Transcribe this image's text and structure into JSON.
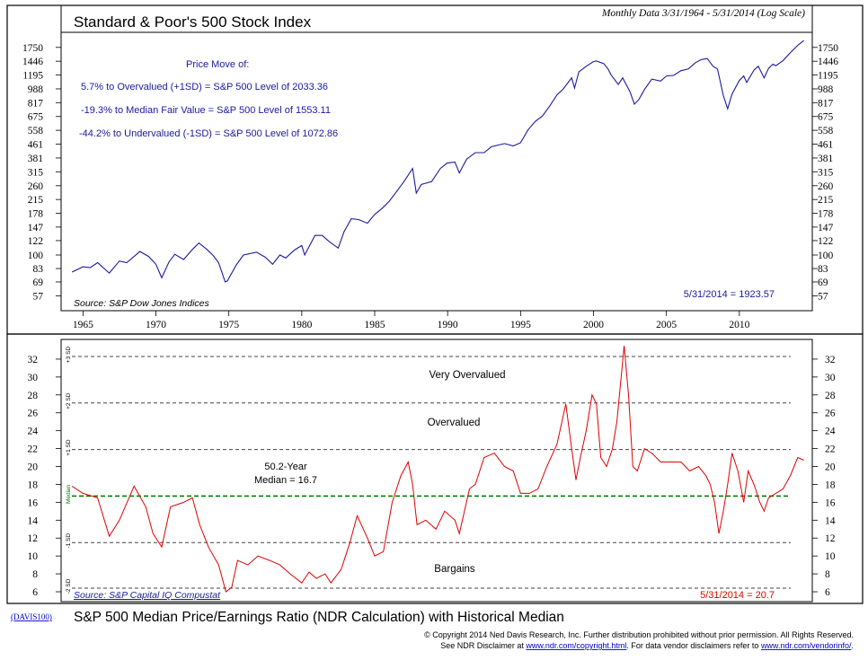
{
  "top_chart": {
    "title": "Standard & Poor's 500 Stock Index",
    "subtitle": "Monthly Data 3/31/1964 - 5/31/2014 (Log Scale)",
    "source": "Source: S&P Dow Jones Indices",
    "latest": "5/31/2014 = 1923.57",
    "price_move": {
      "heading": "Price Move of:",
      "lines": [
        "5.7% to Overvalued (+1SD) = S&P 500 Level of 2033.36",
        "-19.3% to Median Fair Value = S&P 500 Level of 1553.11",
        "-44.2% to Undervalued (-1SD) = S&P 500 Level of 1072.86"
      ]
    }
  },
  "x_axis_labels": [
    "1965",
    "1970",
    "1975",
    "1980",
    "1985",
    "1990",
    "1995",
    "2000",
    "2005",
    "2010"
  ],
  "bottom_chart": {
    "title": "S&P 500 Median Price/Earnings Ratio (NDR Calculation) with Historical Median",
    "source": "Source: S&P Capital IQ Compustat",
    "latest": "5/31/2014 = 20.7",
    "median_label_1": "50.2-Year",
    "median_label_2": "Median = 16.7",
    "zone_labels": [
      "Very Overvalued",
      "Overvalued",
      "Bargains"
    ],
    "sd_labels": [
      "+3 SD",
      "+2 SD",
      "+1 SD",
      "Median",
      "-1 SD",
      "-2 SD"
    ]
  },
  "footer": {
    "code": "(DAVIS100)",
    "copyright": "© Copyright 2014 Ned Davis Research, Inc.  Further distribution prohibited without prior permission.  All Rights Reserved.",
    "disclaimer_prefix": "See NDR Disclaimer at ",
    "disclaimer_link1": "www.ndr.com/copyright.html",
    "disclaimer_mid": ". For data vendor disclaimers refer to ",
    "disclaimer_link2": "www.ndr.com/vendorinfo/",
    "disclaimer_suffix": "."
  },
  "colors": {
    "price_line": "#1a1aa0",
    "pe_line": "#e00000",
    "median_line": "#008000",
    "text_blue": "#1a1aa0",
    "text_red": "#e00000",
    "link": "#0000cc"
  },
  "chart_data": [
    {
      "type": "line",
      "title": "Standard & Poor's 500 Stock Index",
      "yscale": "log",
      "ylim": [
        50,
        2000
      ],
      "xlim": [
        1963.5,
        2015.0
      ],
      "y_ticks": [
        57,
        69,
        83,
        100,
        122,
        147,
        178,
        215,
        260,
        315,
        381,
        461,
        558,
        675,
        817,
        988,
        1195,
        1446,
        1750
      ],
      "series": [
        {
          "name": "S&P 500",
          "x": [
            1964.25,
            1965.0,
            1965.5,
            1966.0,
            1966.8,
            1967.5,
            1968.0,
            1968.9,
            1969.5,
            1970.0,
            1970.4,
            1970.9,
            1971.3,
            1971.9,
            1972.5,
            1972.95,
            1973.5,
            1973.9,
            1974.3,
            1974.75,
            1974.9,
            1975.5,
            1976.0,
            1976.9,
            1977.5,
            1978.0,
            1978.5,
            1978.9,
            1979.5,
            1980.0,
            1980.2,
            1980.9,
            1981.4,
            1981.9,
            1982.5,
            1982.9,
            1983.4,
            1983.9,
            1984.5,
            1985.0,
            1985.5,
            1986.0,
            1986.5,
            1987.0,
            1987.6,
            1987.85,
            1988.2,
            1988.9,
            1989.5,
            1989.95,
            1990.5,
            1990.8,
            1991.3,
            1991.9,
            1992.5,
            1993.0,
            1993.9,
            1994.5,
            1995.0,
            1995.5,
            1996.0,
            1996.5,
            1997.0,
            1997.5,
            1997.9,
            1998.5,
            1998.7,
            1999.0,
            1999.5,
            2000.0,
            2000.2,
            2000.7,
            2001.0,
            2001.2,
            2001.7,
            2002.0,
            2002.5,
            2002.8,
            2003.1,
            2003.5,
            2004.0,
            2004.6,
            2005.0,
            2005.5,
            2006.0,
            2006.5,
            2007.0,
            2007.4,
            2007.8,
            2008.2,
            2008.5,
            2008.9,
            2009.2,
            2009.5,
            2010.0,
            2010.3,
            2010.5,
            2011.0,
            2011.3,
            2011.7,
            2012.0,
            2012.3,
            2012.5,
            2013.0,
            2013.5,
            2014.0,
            2014.42
          ],
          "values": [
            79,
            85,
            84,
            90,
            78,
            92,
            90,
            105,
            98,
            88,
            73,
            91,
            101,
            94,
            108,
            118,
            108,
            100,
            90,
            69,
            70,
            87,
            100,
            104,
            97,
            88,
            100,
            96,
            107,
            114,
            100,
            131,
            131,
            120,
            110,
            138,
            165,
            163,
            155,
            175,
            190,
            210,
            240,
            275,
            330,
            235,
            265,
            275,
            330,
            355,
            360,
            310,
            375,
            410,
            410,
            445,
            465,
            450,
            470,
            560,
            630,
            680,
            780,
            910,
            980,
            1150,
            1000,
            1250,
            1350,
            1440,
            1450,
            1400,
            1300,
            1200,
            1050,
            1150,
            950,
            800,
            850,
            980,
            1130,
            1100,
            1180,
            1190,
            1270,
            1300,
            1420,
            1480,
            1500,
            1350,
            1300,
            900,
            750,
            920,
            1110,
            1180,
            1080,
            1280,
            1350,
            1150,
            1310,
            1390,
            1360,
            1460,
            1630,
            1800,
            1923.57
          ]
        }
      ]
    },
    {
      "type": "line",
      "title": "S&P 500 Median Price/Earnings Ratio (NDR Calculation) with Historical Median",
      "ylim": [
        5.5,
        34
      ],
      "xlim": [
        1963.5,
        2015.0
      ],
      "y_ticks": [
        6,
        8,
        10,
        12,
        14,
        16,
        18,
        20,
        22,
        24,
        26,
        28,
        30,
        32
      ],
      "reference_lines": [
        {
          "label": "+3 SD",
          "value": 32.3
        },
        {
          "label": "+2 SD",
          "value": 27.1
        },
        {
          "label": "+1 SD",
          "value": 21.9
        },
        {
          "label": "Median",
          "value": 16.7
        },
        {
          "label": "-1 SD",
          "value": 11.5
        },
        {
          "label": "-2 SD",
          "value": 6.4
        }
      ],
      "series": [
        {
          "name": "Median P/E",
          "x": [
            1964.25,
            1965.0,
            1966.0,
            1966.8,
            1967.5,
            1968.5,
            1969.3,
            1969.8,
            1970.4,
            1971.0,
            1971.9,
            1972.5,
            1973.0,
            1973.6,
            1974.3,
            1974.8,
            1975.2,
            1975.6,
            1976.3,
            1977.0,
            1977.8,
            1978.5,
            1979.2,
            1980.0,
            1980.5,
            1981.0,
            1981.6,
            1982.0,
            1982.7,
            1983.3,
            1983.8,
            1984.5,
            1985.0,
            1985.6,
            1986.2,
            1986.8,
            1987.3,
            1987.6,
            1987.9,
            1988.5,
            1989.2,
            1989.8,
            1990.5,
            1990.8,
            1991.5,
            1991.9,
            1992.5,
            1993.2,
            1993.9,
            1994.5,
            1995.0,
            1995.6,
            1996.2,
            1996.8,
            1997.5,
            1998.1,
            1998.5,
            1998.8,
            1999.1,
            1999.5,
            1999.9,
            2000.2,
            2000.5,
            2000.9,
            2001.3,
            2001.6,
            2001.9,
            2002.1,
            2002.4,
            2002.7,
            2003.0,
            2003.5,
            2004.0,
            2004.6,
            2005.3,
            2006.0,
            2006.6,
            2007.2,
            2007.7,
            2008.0,
            2008.3,
            2008.6,
            2008.9,
            2009.2,
            2009.5,
            2009.9,
            2010.3,
            2010.6,
            2011.0,
            2011.4,
            2011.7,
            2012.0,
            2012.5,
            2013.0,
            2013.5,
            2014.0,
            2014.42
          ],
          "values": [
            17.8,
            17.0,
            16.5,
            12.2,
            14.0,
            17.8,
            15.5,
            12.5,
            11.0,
            15.5,
            16.0,
            16.5,
            13.5,
            11.0,
            9.0,
            6.0,
            6.5,
            9.5,
            9.0,
            10.0,
            9.5,
            9.0,
            8.0,
            7.0,
            8.2,
            7.5,
            8.0,
            7.0,
            8.5,
            11.5,
            14.5,
            12.0,
            10.0,
            10.5,
            16.0,
            19.0,
            20.5,
            18.0,
            13.5,
            14.0,
            13.0,
            15.0,
            14.0,
            12.5,
            17.5,
            18.0,
            21.0,
            21.5,
            20.0,
            19.5,
            17.0,
            17.0,
            17.5,
            20.0,
            22.5,
            27.0,
            22.0,
            18.5,
            21.0,
            24.0,
            28.0,
            27.0,
            21.0,
            20.0,
            22.0,
            25.0,
            30.0,
            33.5,
            28.0,
            20.0,
            19.5,
            22.0,
            21.5,
            20.5,
            20.5,
            20.5,
            19.5,
            20.0,
            19.0,
            18.0,
            16.0,
            12.5,
            15.0,
            18.0,
            21.5,
            19.5,
            16.0,
            19.5,
            18.0,
            16.0,
            15.0,
            16.5,
            17.0,
            17.5,
            19.0,
            21.0,
            20.7
          ]
        }
      ]
    }
  ]
}
